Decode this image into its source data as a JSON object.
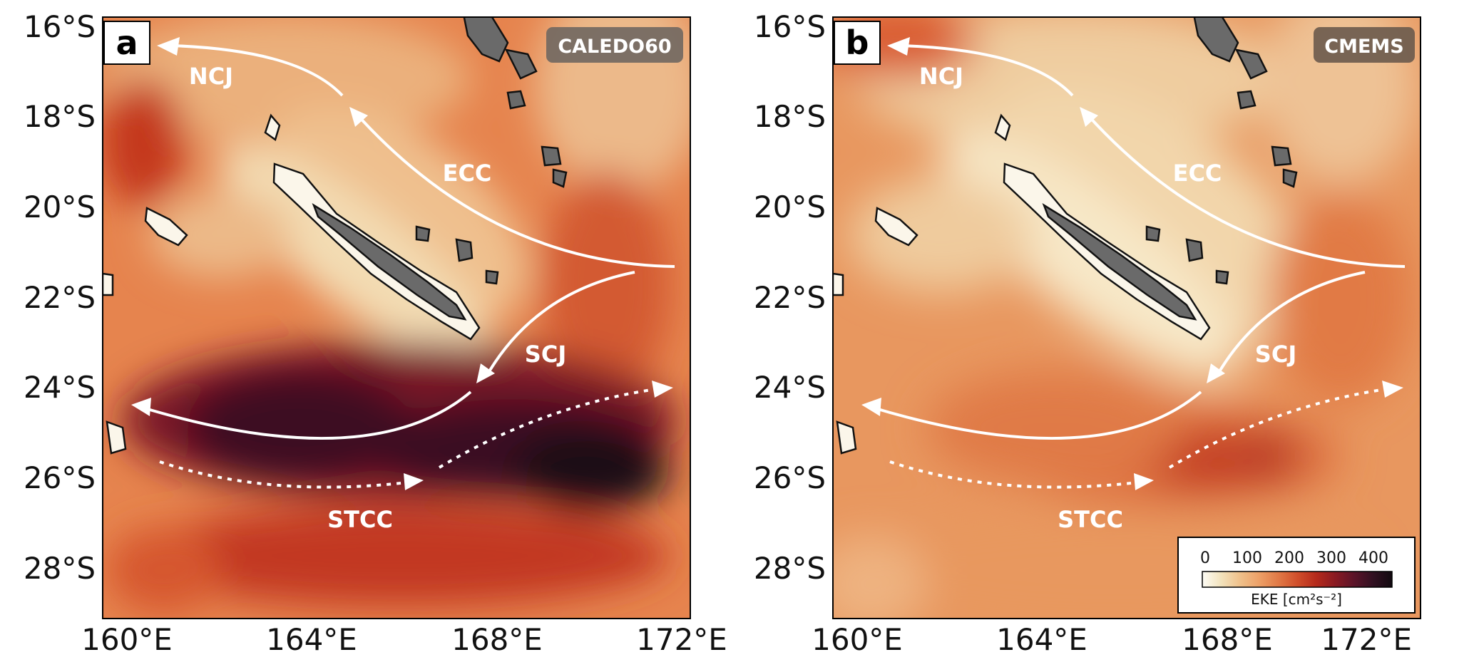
{
  "figure": {
    "x_tick_labels": [
      "160°E",
      "164°E",
      "168°E",
      "172°E"
    ],
    "y_tick_labels": [
      "16°S",
      "18°S",
      "20°S",
      "22°S",
      "24°S",
      "26°S",
      "28°S"
    ],
    "extent": {
      "lon": [
        159.7,
        172.3
      ],
      "lat": [
        -29.0,
        -15.8
      ]
    }
  },
  "panels": [
    {
      "letter": "a",
      "source": "CALEDO60",
      "intensity": "high"
    },
    {
      "letter": "b",
      "source": "CMEMS",
      "intensity": "moderate"
    }
  ],
  "currents": [
    {
      "label": "NCJ",
      "style": "solid",
      "direction": "westward"
    },
    {
      "label": "ECC",
      "style": "solid",
      "direction": "northwestward"
    },
    {
      "label": "SCJ",
      "style": "solid",
      "direction": "southwestward"
    },
    {
      "label": "STCC",
      "style": "dotted",
      "direction": "eastward"
    }
  ],
  "colorbar": {
    "label": "EKE [cm²s⁻²]",
    "ticks": [
      "0",
      "100",
      "200",
      "300",
      "400"
    ],
    "range": [
      0,
      450
    ],
    "colors": [
      "#fdfcf6",
      "#f2e2bc",
      "#efc08a",
      "#eda067",
      "#e17a47",
      "#d14f2b",
      "#b52a1b",
      "#8a1a22",
      "#5b1429",
      "#311021",
      "#120a10"
    ]
  },
  "land_color": "#6a6a6a",
  "arrow_color": "#ffffff"
}
